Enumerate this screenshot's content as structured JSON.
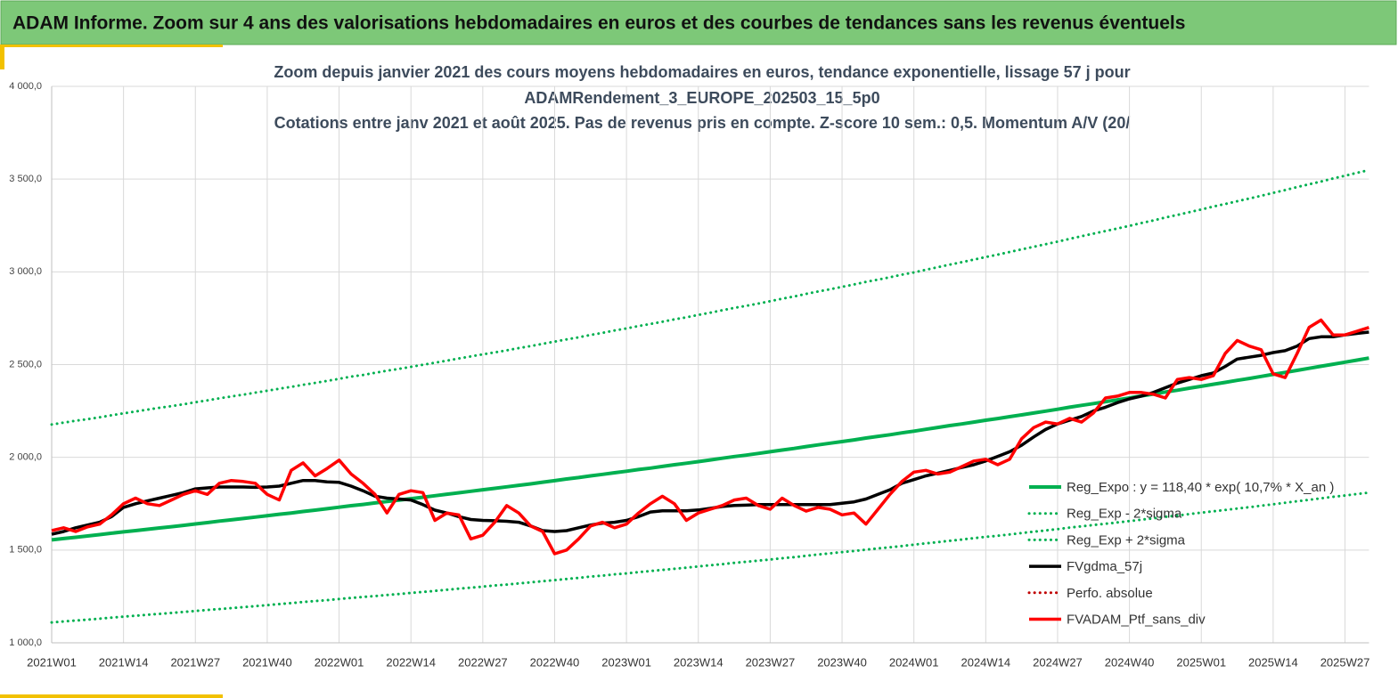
{
  "header": {
    "title": "ADAM Informe. Zoom sur 4 ans des valorisations hebdomadaires en euros et des courbes de tendances sans les revenus éventuels"
  },
  "chart_data": {
    "type": "line",
    "title": [
      "Zoom depuis janvier 2021 des cours moyens hebdomadaires  en euros, tendance exponentielle, lissage 57 j pour",
      "ADAMRendement_3_EUROPE_202503_15_5p0",
      "Cotations entre janv 2021 et août 2025. Pas de revenus pris en compte. Z-score 10 sem.: 0,5. Momentum A/V (20/"
    ],
    "categories": [
      "2021W01",
      null,
      null,
      null,
      null,
      null,
      "2021W14",
      null,
      null,
      null,
      null,
      null,
      "2021W27",
      null,
      null,
      null,
      null,
      null,
      "2021W40",
      null,
      null,
      null,
      null,
      null,
      "2022W01",
      null,
      null,
      null,
      null,
      null,
      "2022W14",
      null,
      null,
      null,
      null,
      null,
      "2022W27",
      null,
      null,
      null,
      null,
      null,
      "2022W40",
      null,
      null,
      null,
      null,
      null,
      "2023W01",
      null,
      null,
      null,
      null,
      null,
      "2023W14",
      null,
      null,
      null,
      null,
      null,
      "2023W27",
      null,
      null,
      null,
      null,
      null,
      "2023W40",
      null,
      null,
      null,
      null,
      null,
      "2024W01",
      null,
      null,
      null,
      null,
      null,
      "2024W14",
      null,
      null,
      null,
      null,
      null,
      "2024W27",
      null,
      null,
      null,
      null,
      null,
      "2024W40",
      null,
      null,
      null,
      null,
      null,
      "2025W01",
      null,
      null,
      null,
      null,
      null,
      "2025W14",
      null,
      null,
      null,
      null,
      null,
      "2025W27",
      null,
      null
    ],
    "ylim": [
      1000,
      4000
    ],
    "yticks": [
      {
        "value": 1000,
        "label": "1 000,0"
      },
      {
        "value": 1500,
        "label": "1 500,0"
      },
      {
        "value": 2000,
        "label": "2 000,0"
      },
      {
        "value": 2500,
        "label": "2 500,0"
      },
      {
        "value": 3000,
        "label": "3 000,0"
      },
      {
        "value": 3500,
        "label": "3 500,0"
      },
      {
        "value": 4000,
        "label": "4 000,0"
      }
    ],
    "grid": true,
    "legend": "right",
    "series": [
      {
        "name": "Reg_Expo : y = 118,40 * exp( 10,7% *  X_an )",
        "color": "#00b050",
        "dash": "solid",
        "width": 4,
        "values": [
          1555,
          1562,
          1569,
          1576,
          1583,
          1591,
          1598,
          1605,
          1612,
          1619,
          1626,
          1633,
          1641,
          1648,
          1656,
          1663,
          1670,
          1678,
          1685,
          1693,
          1700,
          1708,
          1715,
          1723,
          1731,
          1739,
          1746,
          1754,
          1762,
          1769,
          1777,
          1785,
          1793,
          1801,
          1809,
          1817,
          1825,
          1833,
          1841,
          1849,
          1857,
          1866,
          1874,
          1883,
          1891,
          1900,
          1908,
          1917,
          1925,
          1934,
          1942,
          1951,
          1960,
          1968,
          1977,
          1986,
          1995,
          2004,
          2012,
          2021,
          2030,
          2039,
          2048,
          2058,
          2067,
          2076,
          2085,
          2094,
          2104,
          2113,
          2122,
          2132,
          2141,
          2151,
          2161,
          2171,
          2180,
          2190,
          2200,
          2209,
          2219,
          2229,
          2239,
          2249,
          2259,
          2270,
          2280,
          2290,
          2300,
          2310,
          2320,
          2331,
          2341,
          2352,
          2362,
          2373,
          2383,
          2394,
          2404,
          2415,
          2425,
          2436,
          2447,
          2458,
          2469,
          2480,
          2491,
          2502,
          2513,
          2524,
          2535
        ]
      },
      {
        "name": "Reg_Exp - 2*sigma",
        "color": "#00b050",
        "dash": "dotted",
        "width": 3,
        "values": [
          1110,
          1115,
          1120,
          1125,
          1130,
          1136,
          1141,
          1146,
          1151,
          1156,
          1161,
          1166,
          1172,
          1177,
          1182,
          1187,
          1192,
          1198,
          1203,
          1209,
          1214,
          1220,
          1225,
          1230,
          1236,
          1242,
          1247,
          1252,
          1258,
          1263,
          1269,
          1274,
          1280,
          1286,
          1292,
          1297,
          1303,
          1309,
          1314,
          1320,
          1326,
          1332,
          1338,
          1344,
          1350,
          1357,
          1362,
          1369,
          1374,
          1381,
          1387,
          1393,
          1399,
          1405,
          1412,
          1418,
          1424,
          1431,
          1437,
          1443,
          1449,
          1456,
          1462,
          1469,
          1476,
          1482,
          1489,
          1495,
          1502,
          1509,
          1515,
          1522,
          1529,
          1536,
          1543,
          1550,
          1557,
          1564,
          1571,
          1577,
          1584,
          1592,
          1599,
          1606,
          1613,
          1621,
          1628,
          1635,
          1642,
          1649,
          1656,
          1664,
          1671,
          1679,
          1686,
          1694,
          1702,
          1709,
          1716,
          1724,
          1731,
          1739,
          1747,
          1755,
          1763,
          1771,
          1779,
          1787,
          1794,
          1802,
          1810
        ]
      },
      {
        "name": "Reg_Exp + 2*sigma",
        "color": "#00b050",
        "dash": "dotted",
        "width": 3,
        "values": [
          2177,
          2187,
          2197,
          2206,
          2216,
          2227,
          2237,
          2247,
          2257,
          2267,
          2276,
          2286,
          2297,
          2307,
          2318,
          2328,
          2338,
          2349,
          2359,
          2370,
          2380,
          2391,
          2401,
          2412,
          2423,
          2435,
          2444,
          2456,
          2467,
          2477,
          2488,
          2499,
          2510,
          2521,
          2533,
          2544,
          2555,
          2566,
          2577,
          2589,
          2600,
          2612,
          2624,
          2636,
          2647,
          2660,
          2671,
          2684,
          2695,
          2708,
          2719,
          2731,
          2744,
          2755,
          2768,
          2780,
          2793,
          2806,
          2817,
          2829,
          2842,
          2855,
          2867,
          2881,
          2894,
          2906,
          2919,
          2932,
          2946,
          2958,
          2971,
          2985,
          2997,
          3011,
          3025,
          3039,
          3052,
          3066,
          3080,
          3093,
          3107,
          3121,
          3135,
          3149,
          3163,
          3178,
          3192,
          3206,
          3220,
          3234,
          3248,
          3263,
          3277,
          3293,
          3307,
          3322,
          3336,
          3352,
          3366,
          3381,
          3395,
          3410,
          3426,
          3441,
          3457,
          3472,
          3487,
          3503,
          3518,
          3534,
          3549
        ]
      },
      {
        "name": "FVgdma_57j",
        "color": "#000000",
        "dash": "solid",
        "width": 3.5,
        "values": [
          1585,
          1600,
          1620,
          1635,
          1650,
          1680,
          1730,
          1750,
          1765,
          1780,
          1795,
          1810,
          1830,
          1835,
          1840,
          1840,
          1840,
          1838,
          1840,
          1845,
          1860,
          1875,
          1875,
          1868,
          1865,
          1845,
          1820,
          1790,
          1780,
          1775,
          1770,
          1745,
          1715,
          1700,
          1680,
          1665,
          1660,
          1658,
          1655,
          1650,
          1630,
          1605,
          1600,
          1605,
          1620,
          1635,
          1645,
          1650,
          1660,
          1680,
          1705,
          1712,
          1712,
          1712,
          1716,
          1725,
          1735,
          1740,
          1742,
          1745,
          1745,
          1745,
          1745,
          1745,
          1745,
          1745,
          1752,
          1760,
          1775,
          1800,
          1825,
          1860,
          1880,
          1900,
          1915,
          1930,
          1945,
          1960,
          1980,
          2005,
          2030,
          2065,
          2110,
          2150,
          2180,
          2200,
          2220,
          2250,
          2270,
          2295,
          2315,
          2330,
          2350,
          2375,
          2400,
          2420,
          2440,
          2455,
          2490,
          2530,
          2540,
          2550,
          2565,
          2575,
          2600,
          2640,
          2650,
          2650,
          2660,
          2668,
          2675
        ]
      },
      {
        "name": "Perfo. absolue",
        "color": "#c00000",
        "dash": "dotted",
        "width": 3,
        "values": [
          null,
          null,
          null,
          null,
          null,
          null,
          null,
          null,
          null,
          null,
          null,
          null,
          null,
          null,
          null,
          null,
          null,
          null,
          null,
          null,
          null,
          null,
          null,
          null,
          null,
          null,
          null,
          null,
          null,
          null,
          null,
          null,
          null,
          null,
          null,
          null,
          null,
          null,
          null,
          null,
          null,
          null,
          null,
          null,
          null,
          null,
          null,
          null,
          null,
          null,
          null,
          null,
          null,
          null,
          null,
          null,
          null,
          null,
          null,
          null,
          null,
          null,
          null,
          null,
          null,
          null,
          null,
          null,
          null,
          null,
          null,
          null,
          null,
          null,
          null,
          null,
          null,
          null,
          null,
          null,
          null,
          null,
          null,
          null,
          null,
          null,
          null,
          null,
          null,
          null,
          null,
          null,
          null,
          null,
          null,
          null,
          null,
          null,
          null,
          null,
          null,
          null,
          null,
          null,
          null,
          null,
          null,
          null,
          null,
          null,
          null
        ]
      },
      {
        "name": "FVADAM_Ptf_sans_div",
        "color": "#ff0000",
        "dash": "solid",
        "width": 3.5,
        "values": [
          1605,
          1620,
          1600,
          1625,
          1640,
          1690,
          1750,
          1780,
          1750,
          1740,
          1770,
          1800,
          1820,
          1800,
          1860,
          1875,
          1870,
          1860,
          1800,
          1770,
          1930,
          1970,
          1900,
          1940,
          1985,
          1910,
          1860,
          1800,
          1700,
          1800,
          1820,
          1810,
          1660,
          1700,
          1690,
          1560,
          1580,
          1650,
          1740,
          1700,
          1630,
          1600,
          1480,
          1500,
          1560,
          1630,
          1650,
          1620,
          1640,
          1700,
          1750,
          1790,
          1750,
          1660,
          1700,
          1720,
          1740,
          1770,
          1780,
          1740,
          1720,
          1780,
          1740,
          1710,
          1730,
          1720,
          1690,
          1700,
          1640,
          1720,
          1800,
          1870,
          1920,
          1930,
          1910,
          1920,
          1950,
          1980,
          1990,
          1960,
          1990,
          2100,
          2160,
          2190,
          2180,
          2210,
          2190,
          2240,
          2320,
          2330,
          2350,
          2350,
          2340,
          2320,
          2420,
          2430,
          2420,
          2440,
          2560,
          2630,
          2600,
          2580,
          2450,
          2430,
          2560,
          2700,
          2740,
          2660,
          2660,
          2680,
          2700
        ]
      }
    ]
  }
}
